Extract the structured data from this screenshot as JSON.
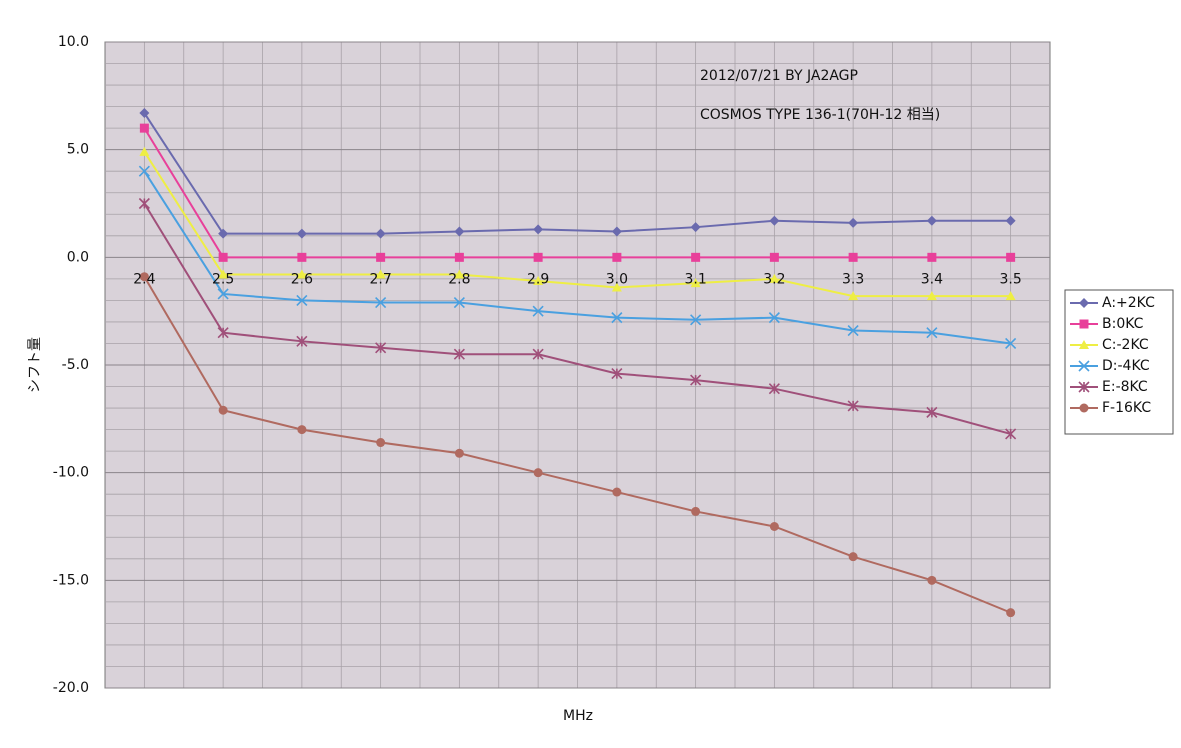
{
  "chart_data": {
    "type": "line",
    "annotations": [
      "2012/07/21 BY JA2AGP",
      "COSMOS TYPE 136-1(70H-12 相当)"
    ],
    "xlabel": "MHz",
    "ylabel": "シフト量",
    "categories": [
      "2.4",
      "2.5",
      "2.6",
      "2.7",
      "2.8",
      "2.9",
      "3.0",
      "3.1",
      "3.2",
      "3.3",
      "3.4",
      "3.5"
    ],
    "series": [
      {
        "name": "A:+2KC",
        "color": "#6a6aae",
        "marker": "diamond",
        "values": [
          6.7,
          1.1,
          1.1,
          1.1,
          1.2,
          1.3,
          1.2,
          1.4,
          1.7,
          1.6,
          1.7,
          1.7
        ]
      },
      {
        "name": "B:0KC",
        "color": "#e8409a",
        "marker": "square",
        "values": [
          6.0,
          0,
          0,
          0,
          0,
          0,
          0,
          0,
          0,
          0,
          0,
          0
        ]
      },
      {
        "name": "C:-2KC",
        "color": "#eeee44",
        "marker": "triangle",
        "values": [
          4.9,
          -0.8,
          -0.8,
          -0.8,
          -0.8,
          -1.1,
          -1.4,
          -1.2,
          -1.0,
          -1.8,
          -1.8,
          -1.8
        ]
      },
      {
        "name": "D:-4KC",
        "color": "#4aa0e0",
        "marker": "x",
        "values": [
          4.0,
          -1.7,
          -2.0,
          -2.1,
          -2.1,
          -2.5,
          -2.8,
          -2.9,
          -2.8,
          -3.4,
          -3.5,
          -4.0
        ]
      },
      {
        "name": "E:-8KC",
        "color": "#a0507a",
        "marker": "star",
        "values": [
          2.5,
          -3.5,
          -3.9,
          -4.2,
          -4.5,
          -4.5,
          -5.4,
          -5.7,
          -6.1,
          -6.9,
          -7.2,
          -8.2
        ]
      },
      {
        "name": "F-16KC",
        "color": "#b06a60",
        "marker": "circle",
        "values": [
          -0.9,
          -7.1,
          -8.0,
          -8.6,
          -9.1,
          -10.0,
          -10.9,
          -11.8,
          -12.5,
          -13.9,
          -15.0,
          -16.5
        ]
      }
    ],
    "ylim": [
      -20,
      10
    ],
    "yticks": [
      {
        "value": -20,
        "label": "-20.0"
      },
      {
        "value": -15,
        "label": "-15.0"
      },
      {
        "value": -10,
        "label": "-10.0"
      },
      {
        "value": -5,
        "label": "-5.0"
      },
      {
        "value": 0,
        "label": "0.0"
      },
      {
        "value": 5,
        "label": "5.0"
      },
      {
        "value": 10,
        "label": "10.0"
      }
    ],
    "grid": true,
    "legend": "right"
  }
}
